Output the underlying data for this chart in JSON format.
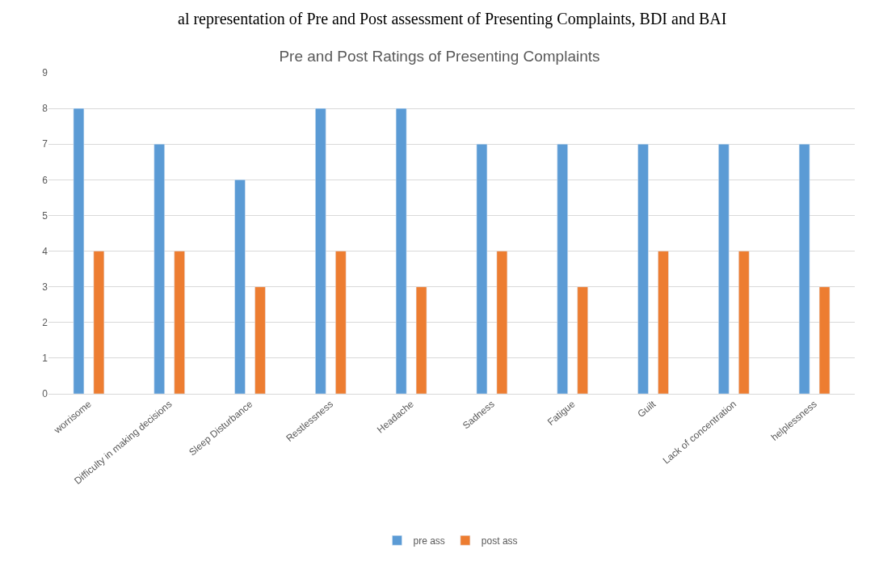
{
  "chart_data": {
    "type": "bar",
    "title": "Pre and Post Ratings of Presenting Complaints",
    "annotations": [
      "al representation of Pre and Post assessment of Presenting Complaints, BDI and BAI"
    ],
    "categories": [
      "worrisome",
      "Difficulty in making decisions",
      "Sleep Disturbance",
      "Restlessness",
      "Headache",
      "Sadness",
      "Fatigue",
      "Guilt",
      "Lack of concentration",
      "helplessness"
    ],
    "series": [
      {
        "name": "pre ass",
        "color": "#5b9bd5",
        "values": [
          8,
          7,
          6,
          8,
          8,
          7,
          7,
          7,
          7,
          7
        ]
      },
      {
        "name": "post ass",
        "color": "#ed7d31",
        "values": [
          4,
          4,
          3,
          4,
          3,
          4,
          3,
          4,
          4,
          3
        ]
      }
    ],
    "ylim": [
      0,
      9
    ],
    "yticks": [
      0,
      1,
      2,
      3,
      4,
      5,
      6,
      7,
      8,
      9
    ],
    "grid": "y",
    "legend": "bottom"
  }
}
